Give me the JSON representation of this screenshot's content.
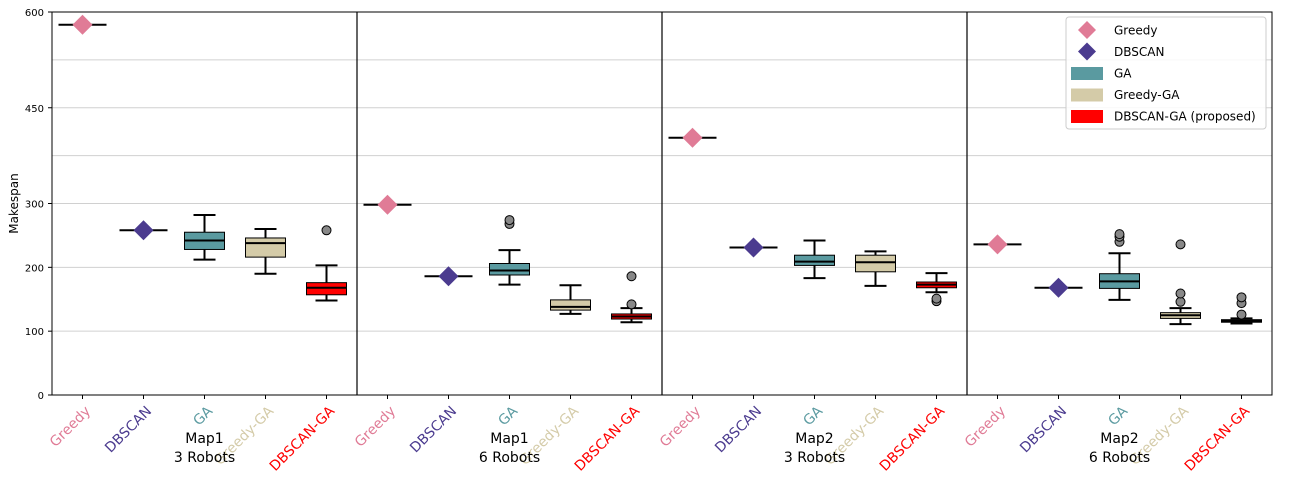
{
  "chart_data": {
    "type": "box",
    "ylabel": "Makespan",
    "yticks": [
      0,
      100,
      200,
      300,
      450,
      600
    ],
    "ylim": [
      0,
      600
    ],
    "grid": true,
    "legend_position": "top-right",
    "methods": [
      "Greedy",
      "DBSCAN",
      "GA",
      "Greedy-GA",
      "DBSCAN-GA"
    ],
    "method_colors": {
      "Greedy": "#e07b96",
      "DBSCAN": "#4b3b8f",
      "GA": "#5a9aa0",
      "Greedy-GA": "#d4cba8",
      "DBSCAN-GA": "#ff0000"
    },
    "legend": [
      {
        "label": "Greedy",
        "color": "#e07b96",
        "marker": "diamond"
      },
      {
        "label": "DBSCAN",
        "color": "#4b3b8f",
        "marker": "diamond"
      },
      {
        "label": "GA",
        "color": "#5a9aa0",
        "marker": "box"
      },
      {
        "label": "Greedy-GA",
        "color": "#d4cba8",
        "marker": "box"
      },
      {
        "label": "DBSCAN-GA (proposed)",
        "color": "#ff0000",
        "marker": "box"
      }
    ],
    "groups": [
      {
        "label_line1": "Map1",
        "label_line2": "3 Robots",
        "greedy": 580,
        "dbscan": 258,
        "boxes": [
          {
            "method": "GA",
            "whisker_low": 212,
            "q1": 228,
            "median": 242,
            "q3": 255,
            "whisker_high": 282,
            "outliers": []
          },
          {
            "method": "Greedy-GA",
            "whisker_low": 190,
            "q1": 216,
            "median": 238,
            "q3": 246,
            "whisker_high": 260,
            "outliers": []
          },
          {
            "method": "DBSCAN-GA",
            "whisker_low": 148,
            "q1": 157,
            "median": 168,
            "q3": 176,
            "whisker_high": 203,
            "outliers": [
              258
            ]
          }
        ]
      },
      {
        "label_line1": "Map1",
        "label_line2": "6 Robots",
        "greedy": 298,
        "dbscan": 186,
        "boxes": [
          {
            "method": "GA",
            "whisker_low": 173,
            "q1": 188,
            "median": 195,
            "q3": 206,
            "whisker_high": 227,
            "outliers": [
              268,
              274
            ]
          },
          {
            "method": "Greedy-GA",
            "whisker_low": 127,
            "q1": 133,
            "median": 138,
            "q3": 149,
            "whisker_high": 172,
            "outliers": []
          },
          {
            "method": "DBSCAN-GA",
            "whisker_low": 114,
            "q1": 119,
            "median": 123,
            "q3": 127,
            "whisker_high": 136,
            "outliers": [
              142,
              186
            ]
          }
        ]
      },
      {
        "label_line1": "Map2",
        "label_line2": "3 Robots",
        "greedy": 403,
        "dbscan": 231,
        "boxes": [
          {
            "method": "GA",
            "whisker_low": 183,
            "q1": 203,
            "median": 209,
            "q3": 219,
            "whisker_high": 242,
            "outliers": []
          },
          {
            "method": "Greedy-GA",
            "whisker_low": 171,
            "q1": 193,
            "median": 208,
            "q3": 219,
            "whisker_high": 225,
            "outliers": []
          },
          {
            "method": "DBSCAN-GA",
            "whisker_low": 161,
            "q1": 168,
            "median": 173,
            "q3": 177,
            "whisker_high": 191,
            "outliers": [
              147,
              151
            ]
          }
        ]
      },
      {
        "label_line1": "Map2",
        "label_line2": "6 Robots",
        "greedy": 236,
        "dbscan": 168,
        "boxes": [
          {
            "method": "GA",
            "whisker_low": 149,
            "q1": 167,
            "median": 178,
            "q3": 190,
            "whisker_high": 222,
            "outliers": [
              240,
              248,
              252
            ]
          },
          {
            "method": "Greedy-GA",
            "whisker_low": 111,
            "q1": 120,
            "median": 125,
            "q3": 129,
            "whisker_high": 136,
            "outliers": [
              146,
              159,
              236
            ]
          },
          {
            "method": "DBSCAN-GA",
            "whisker_low": 112,
            "q1": 114,
            "median": 116,
            "q3": 118,
            "whisker_high": 120,
            "outliers": [
              126,
              144,
              153
            ]
          }
        ]
      }
    ]
  }
}
